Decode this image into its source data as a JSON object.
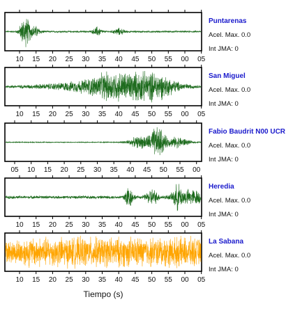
{
  "chart_data": {
    "type": "line",
    "xlabel": "Tiempo (s)",
    "x_tick_labels": [
      "10",
      "15",
      "20",
      "25",
      "30",
      "35",
      "40",
      "45",
      "50",
      "55",
      "00",
      "05"
    ],
    "x_tick_labels_fabio": [
      "05",
      "10",
      "15",
      "20",
      "25",
      "30",
      "35",
      "40",
      "45",
      "50",
      "55",
      "00"
    ],
    "acel_label": "Acel. Max.",
    "jma_label": "Int JMA:",
    "stations": [
      {
        "name": "Puntarenas",
        "acel_value": "0.0",
        "jma_value": "0",
        "color": "#1d6b1d",
        "bursts": [
          {
            "t": 0.1,
            "w": 0.018,
            "a": 1.0
          },
          {
            "t": 0.15,
            "w": 0.02,
            "a": 0.35
          },
          {
            "t": 0.47,
            "w": 0.015,
            "a": 0.3
          },
          {
            "t": 0.58,
            "w": 0.02,
            "a": 0.2
          }
        ],
        "base_amp": 0.06
      },
      {
        "name": "San Miguel",
        "acel_value": "0.0",
        "jma_value": "0",
        "color": "#1d6b1d",
        "bursts": [
          {
            "t": 0.6,
            "w": 0.12,
            "a": 1.0
          },
          {
            "t": 0.75,
            "w": 0.09,
            "a": 0.6
          },
          {
            "t": 0.35,
            "w": 0.15,
            "a": 0.18
          }
        ],
        "base_amp": 0.08
      },
      {
        "name": "Fabio Baudrit N00 UCR",
        "acel_value": "0.0",
        "jma_value": "0",
        "color": "#1d6b1d",
        "bursts": [
          {
            "t": 0.78,
            "w": 0.025,
            "a": 1.0
          },
          {
            "t": 0.7,
            "w": 0.05,
            "a": 0.4
          },
          {
            "t": 0.88,
            "w": 0.04,
            "a": 0.35
          }
        ],
        "base_amp": 0.03
      },
      {
        "name": "Heredia",
        "acel_value": "0.0",
        "jma_value": "0",
        "color": "#1d6b1d",
        "bursts": [
          {
            "t": 0.63,
            "w": 0.015,
            "a": 0.7
          },
          {
            "t": 0.75,
            "w": 0.02,
            "a": 0.5
          },
          {
            "t": 0.88,
            "w": 0.015,
            "a": 0.6
          },
          {
            "t": 0.95,
            "w": 0.06,
            "a": 0.45
          }
        ],
        "base_amp": 0.1
      },
      {
        "name": "La Sabana",
        "acel_value": "0.0",
        "jma_value": "0",
        "color": "#ffa500",
        "bursts": [
          {
            "t": 0.45,
            "w": 0.12,
            "a": 1.0
          },
          {
            "t": 0.25,
            "w": 0.15,
            "a": 0.75
          },
          {
            "t": 0.8,
            "w": 0.15,
            "a": 0.85
          }
        ],
        "base_amp": 0.5
      }
    ]
  }
}
